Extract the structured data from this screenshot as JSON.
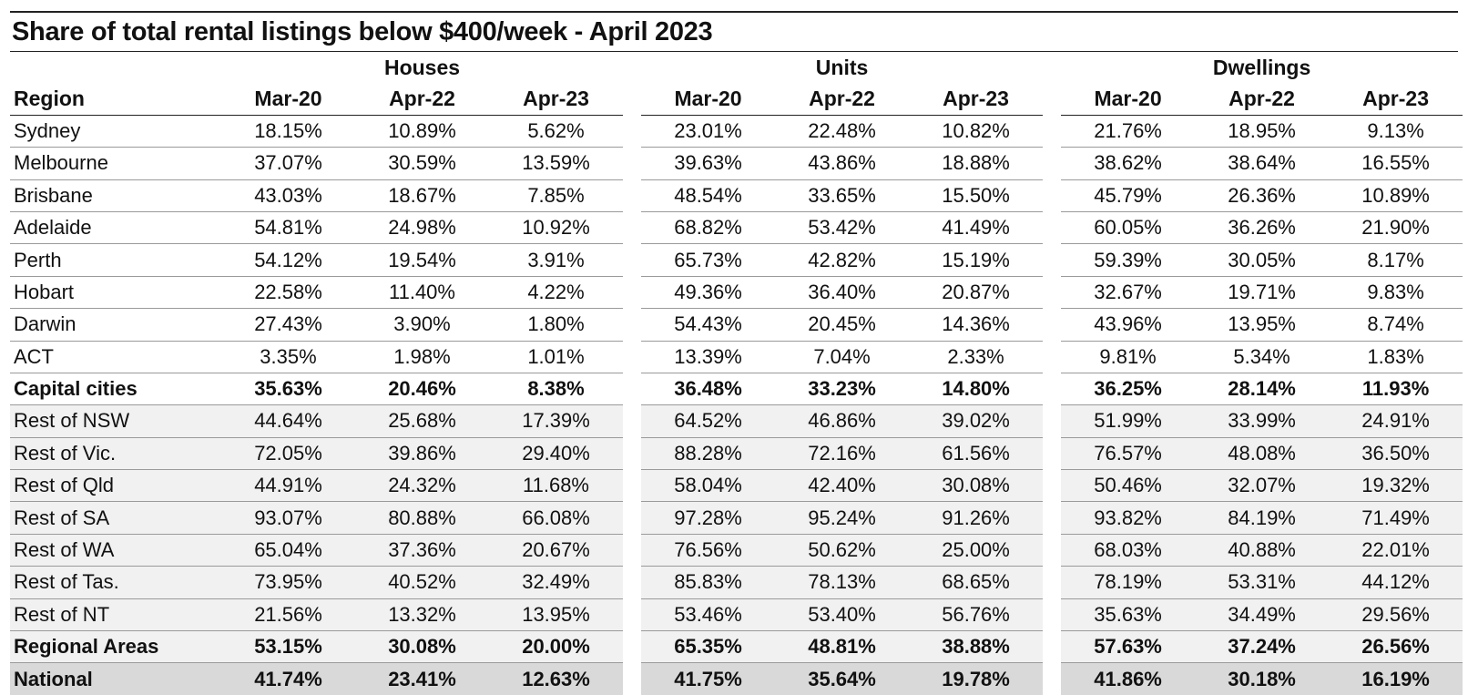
{
  "chart_data": {
    "type": "table",
    "title": "Share of total rental listings below $400/week - April 2023",
    "groups": [
      "Houses",
      "Units",
      "Dwellings"
    ],
    "region_header": "Region",
    "periods": [
      "Mar-20",
      "Apr-22",
      "Apr-23"
    ],
    "rows": [
      {
        "region": "Sydney",
        "values": [
          "18.15%",
          "10.89%",
          "5.62%",
          "23.01%",
          "22.48%",
          "10.82%",
          "21.76%",
          "18.95%",
          "9.13%"
        ]
      },
      {
        "region": "Melbourne",
        "values": [
          "37.07%",
          "30.59%",
          "13.59%",
          "39.63%",
          "43.86%",
          "18.88%",
          "38.62%",
          "38.64%",
          "16.55%"
        ]
      },
      {
        "region": "Brisbane",
        "values": [
          "43.03%",
          "18.67%",
          "7.85%",
          "48.54%",
          "33.65%",
          "15.50%",
          "45.79%",
          "26.36%",
          "10.89%"
        ]
      },
      {
        "region": "Adelaide",
        "values": [
          "54.81%",
          "24.98%",
          "10.92%",
          "68.82%",
          "53.42%",
          "41.49%",
          "60.05%",
          "36.26%",
          "21.90%"
        ]
      },
      {
        "region": "Perth",
        "values": [
          "54.12%",
          "19.54%",
          "3.91%",
          "65.73%",
          "42.82%",
          "15.19%",
          "59.39%",
          "30.05%",
          "8.17%"
        ]
      },
      {
        "region": "Hobart",
        "values": [
          "22.58%",
          "11.40%",
          "4.22%",
          "49.36%",
          "36.40%",
          "20.87%",
          "32.67%",
          "19.71%",
          "9.83%"
        ]
      },
      {
        "region": "Darwin",
        "values": [
          "27.43%",
          "3.90%",
          "1.80%",
          "54.43%",
          "20.45%",
          "14.36%",
          "43.96%",
          "13.95%",
          "8.74%"
        ]
      },
      {
        "region": "ACT",
        "values": [
          "3.35%",
          "1.98%",
          "1.01%",
          "13.39%",
          "7.04%",
          "2.33%",
          "9.81%",
          "5.34%",
          "1.83%"
        ]
      },
      {
        "region": "Capital cities",
        "bold": true,
        "values": [
          "35.63%",
          "20.46%",
          "8.38%",
          "36.48%",
          "33.23%",
          "14.80%",
          "36.25%",
          "28.14%",
          "11.93%"
        ]
      },
      {
        "region": "Rest of NSW",
        "shaded": true,
        "values": [
          "44.64%",
          "25.68%",
          "17.39%",
          "64.52%",
          "46.86%",
          "39.02%",
          "51.99%",
          "33.99%",
          "24.91%"
        ]
      },
      {
        "region": "Rest of Vic.",
        "shaded": true,
        "values": [
          "72.05%",
          "39.86%",
          "29.40%",
          "88.28%",
          "72.16%",
          "61.56%",
          "76.57%",
          "48.08%",
          "36.50%"
        ]
      },
      {
        "region": "Rest of Qld",
        "shaded": true,
        "values": [
          "44.91%",
          "24.32%",
          "11.68%",
          "58.04%",
          "42.40%",
          "30.08%",
          "50.46%",
          "32.07%",
          "19.32%"
        ]
      },
      {
        "region": "Rest of SA",
        "shaded": true,
        "values": [
          "93.07%",
          "80.88%",
          "66.08%",
          "97.28%",
          "95.24%",
          "91.26%",
          "93.82%",
          "84.19%",
          "71.49%"
        ]
      },
      {
        "region": "Rest of WA",
        "shaded": true,
        "values": [
          "65.04%",
          "37.36%",
          "20.67%",
          "76.56%",
          "50.62%",
          "25.00%",
          "68.03%",
          "40.88%",
          "22.01%"
        ]
      },
      {
        "region": "Rest of Tas.",
        "shaded": true,
        "values": [
          "73.95%",
          "40.52%",
          "32.49%",
          "85.83%",
          "78.13%",
          "68.65%",
          "78.19%",
          "53.31%",
          "44.12%"
        ]
      },
      {
        "region": "Rest of NT",
        "shaded": true,
        "values": [
          "21.56%",
          "13.32%",
          "13.95%",
          "53.46%",
          "53.40%",
          "56.76%",
          "35.63%",
          "34.49%",
          "29.56%"
        ]
      },
      {
        "region": "Regional Areas",
        "bold": true,
        "shaded": true,
        "values": [
          "53.15%",
          "30.08%",
          "20.00%",
          "65.35%",
          "48.81%",
          "38.88%",
          "57.63%",
          "37.24%",
          "26.56%"
        ]
      },
      {
        "region": "National",
        "bold": true,
        "national": true,
        "values": [
          "41.74%",
          "23.41%",
          "12.63%",
          "41.75%",
          "35.64%",
          "19.78%",
          "41.86%",
          "30.18%",
          "16.19%"
        ]
      }
    ]
  },
  "colors": {
    "shade_regional": "#f1f1f1",
    "shade_national": "#d9d9d9",
    "rule": "#222222"
  }
}
